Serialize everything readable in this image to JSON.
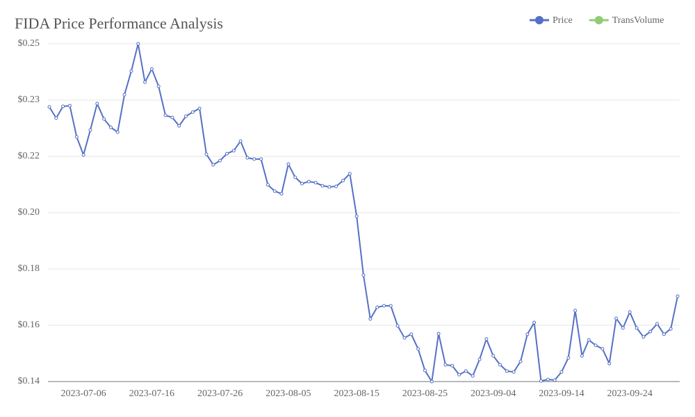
{
  "chart_data": {
    "type": "line",
    "title": "FIDA Price Performance Analysis",
    "categories": [
      null,
      null,
      null,
      null,
      null,
      "2023-07-06",
      null,
      null,
      null,
      null,
      null,
      null,
      null,
      null,
      null,
      "2023-07-16",
      null,
      null,
      null,
      null,
      null,
      null,
      null,
      null,
      null,
      "2023-07-26",
      null,
      null,
      null,
      null,
      null,
      null,
      null,
      null,
      null,
      "2023-08-05",
      null,
      null,
      null,
      null,
      null,
      null,
      null,
      null,
      null,
      "2023-08-15",
      null,
      null,
      null,
      null,
      null,
      null,
      null,
      null,
      null,
      "2023-08-25",
      null,
      null,
      null,
      null,
      null,
      null,
      null,
      null,
      null,
      "2023-09-04",
      null,
      null,
      null,
      null,
      null,
      null,
      null,
      null,
      null,
      "2023-09-14",
      null,
      null,
      null,
      null,
      null,
      null,
      null,
      null,
      null,
      "2023-09-24",
      null,
      null,
      null,
      null,
      null,
      null,
      null
    ],
    "series": [
      {
        "name": "Price",
        "color": "#5470c6",
        "values": [
          0.2317,
          0.228,
          0.2319,
          0.2321,
          0.2217,
          0.2157,
          0.224,
          0.2328,
          0.2277,
          0.2249,
          0.2233,
          0.2358,
          0.2437,
          0.2528,
          0.24,
          0.2444,
          0.2386,
          0.2289,
          0.2282,
          0.2254,
          0.2286,
          0.23,
          0.2312,
          0.2159,
          0.2124,
          0.2138,
          0.2161,
          0.2171,
          0.2203,
          0.2147,
          0.2143,
          0.2143,
          0.2057,
          0.2036,
          0.2027,
          0.2126,
          0.2082,
          0.2061,
          0.2068,
          0.2064,
          0.2054,
          0.205,
          0.2052,
          0.2071,
          0.2094,
          0.1952,
          0.1755,
          0.1609,
          0.1648,
          0.1653,
          0.1653,
          0.1586,
          0.1546,
          0.1558,
          0.1509,
          0.1437,
          0.14,
          0.156,
          0.1456,
          0.1453,
          0.1423,
          0.1435,
          0.1419,
          0.1474,
          0.1542,
          0.1486,
          0.1456,
          0.1435,
          0.1432,
          0.1467,
          0.1558,
          0.1597,
          0.1402,
          0.1407,
          0.1405,
          0.1432,
          0.1479,
          0.1637,
          0.1486,
          0.1539,
          0.1521,
          0.1509,
          0.146,
          0.1611,
          0.1579,
          0.1632,
          0.1579,
          0.1549,
          0.1567,
          0.1593,
          0.1558,
          0.1576,
          0.1685
        ]
      },
      {
        "name": "TransVolume",
        "color": "#91cc75",
        "values": [
          null,
          null,
          null,
          null,
          null,
          null,
          null,
          null,
          null,
          null,
          null,
          null,
          null,
          null,
          null,
          null,
          null,
          null,
          null,
          null,
          null,
          null,
          null,
          null,
          null,
          null,
          null,
          null,
          null,
          null,
          null,
          null,
          null,
          null,
          null,
          null,
          null,
          null,
          null,
          null,
          null,
          null,
          null,
          null,
          null,
          null,
          null,
          null,
          null,
          null,
          null,
          null,
          null,
          null,
          null,
          null,
          null,
          null,
          null,
          null,
          null,
          null,
          null,
          null,
          null,
          null,
          null,
          null,
          null,
          null,
          null,
          null,
          null,
          null,
          null,
          null,
          null,
          null,
          null,
          null,
          null,
          null,
          null,
          null,
          null,
          null,
          null,
          null,
          null,
          null,
          null,
          null,
          null
        ]
      }
    ],
    "ylim": [
      0.14,
      0.2528
    ],
    "yticks": [
      {
        "value": 0.14,
        "label": "$0.14"
      },
      {
        "value": 0.1588,
        "label": "$0.16"
      },
      {
        "value": 0.1776,
        "label": "$0.18"
      },
      {
        "value": 0.1964,
        "label": "$0.20"
      },
      {
        "value": 0.2152,
        "label": "$0.22"
      },
      {
        "value": 0.234,
        "label": "$0.23"
      },
      {
        "value": 0.2528,
        "label": "$0.25"
      }
    ],
    "grid": true
  }
}
